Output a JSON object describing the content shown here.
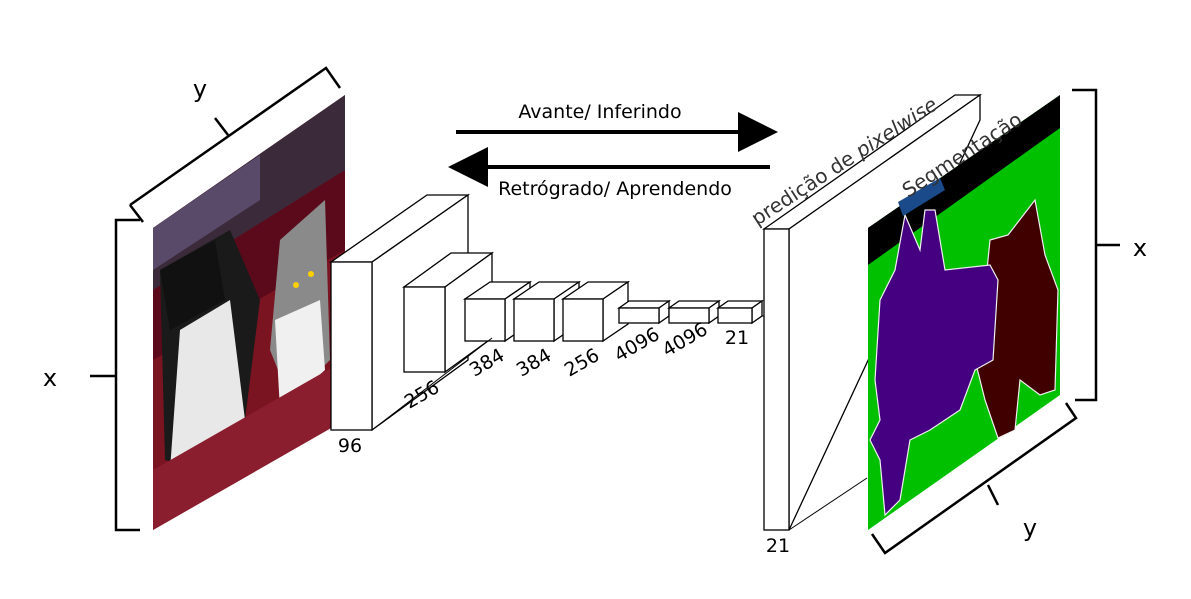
{
  "arrows": {
    "forward_label": "Avante/ Inferindo",
    "backward_label": "Retrógrado/ Aprendendo"
  },
  "input_image": {
    "axis_y": "y",
    "axis_x": "x",
    "description_colors": {
      "background": "#7a1420",
      "cat": "#9a9a9a",
      "dog": "#1a1a1a"
    }
  },
  "layers": [
    {
      "label": "96"
    },
    {
      "label": "256"
    },
    {
      "label": "384"
    },
    {
      "label": "384"
    },
    {
      "label": "256"
    },
    {
      "label": "4096"
    },
    {
      "label": "4096"
    },
    {
      "label": "21"
    }
  ],
  "output_layer": {
    "label": "21",
    "caption_prefix": "predição de ",
    "caption_italic": "pixelwise"
  },
  "segmentation": {
    "caption": "Segmentação",
    "axis_y": "y",
    "axis_x": "x",
    "colors": {
      "background": "#00c000",
      "dog": "#440080",
      "cat": "#400000",
      "border": "#000000",
      "marker": "#1a4a8a"
    }
  }
}
